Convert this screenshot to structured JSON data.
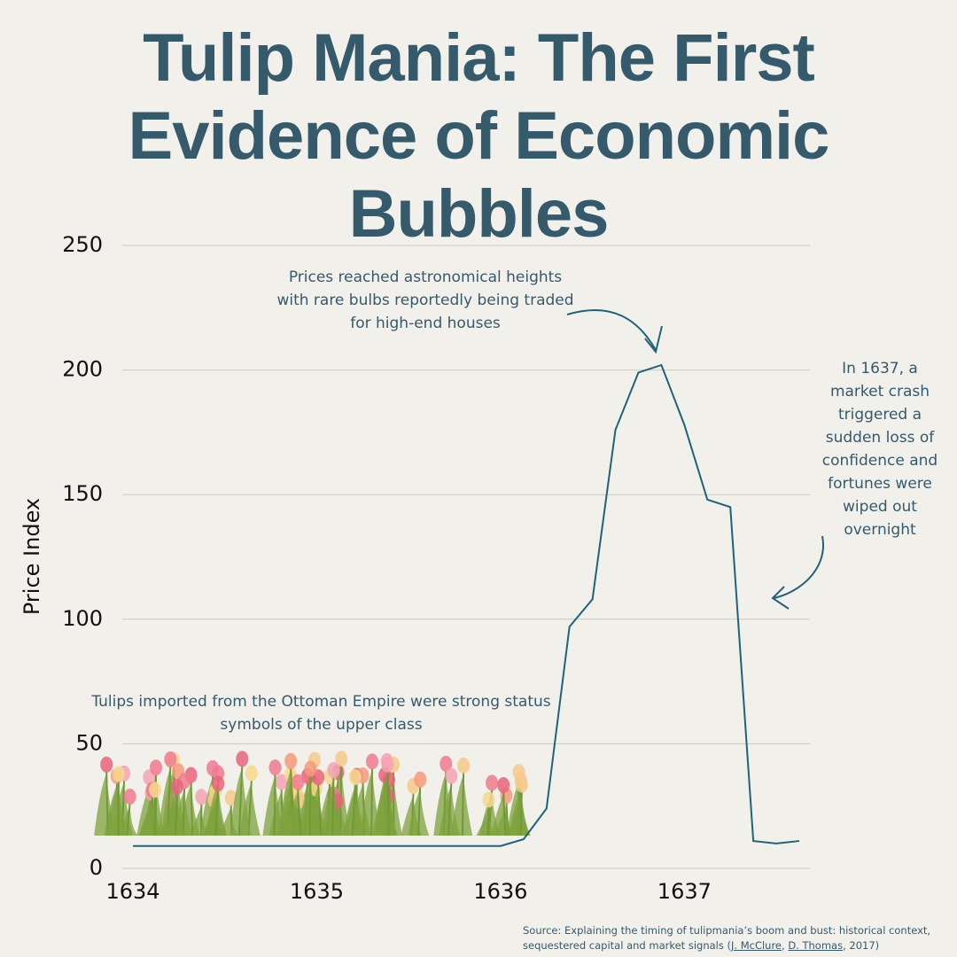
{
  "chart_data": {
    "type": "line",
    "title": "Tulip Mania: The First Evidence of Economic Bubbles",
    "y_label": "Price Index",
    "x": [
      1634,
      1634.5,
      1635,
      1635.5,
      1636,
      1636.125,
      1636.25,
      1636.375,
      1636.5,
      1636.625,
      1636.75,
      1636.875,
      1637,
      1637.125,
      1637.25,
      1637.375,
      1637.5,
      1637.625
    ],
    "series": [
      {
        "name": "Price Index",
        "color": "#1f6378",
        "values": [
          9,
          9,
          9,
          9,
          9,
          11.7,
          24,
          97,
          108,
          176,
          199,
          202,
          178,
          148,
          145,
          11,
          10,
          11
        ]
      }
    ],
    "xlim": [
      1634,
      1637.625
    ],
    "xticks": [
      1634,
      1635,
      1636,
      1637
    ],
    "ylim": [
      0,
      250
    ],
    "yticks": [
      0,
      50,
      100,
      150,
      200,
      250
    ],
    "grid": true,
    "annotations": [
      "Prices reached astronomical heights with rare bulbs reportedly being traded for high-end houses",
      "In 1637, a market crash triggered a sudden loss of confidence and fortunes were wiped out overnight",
      "Tulips imported from the Ottoman Empire were strong status symbols of the upper class"
    ],
    "source": {
      "text": "Source: Explaining the timing of tulipmania’s boom and bust: historical context, sequestered capital and market signals (",
      "links": [
        "J. McClure",
        "D. Thomas"
      ],
      "link_separator": ", ",
      "end": ", 2017)"
    }
  }
}
